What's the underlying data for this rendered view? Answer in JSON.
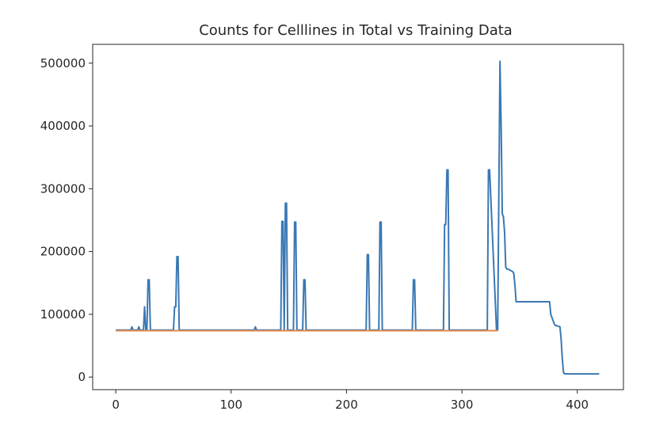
{
  "chart_data": {
    "type": "line",
    "title": "Counts for Celllines in Total vs Training Data",
    "xlabel": "",
    "ylabel": "",
    "xlim": [
      -20,
      440
    ],
    "ylim": [
      -20000,
      530000
    ],
    "xticks": [
      0,
      100,
      200,
      300,
      400
    ],
    "xtick_labels": [
      "0",
      "100",
      "200",
      "300",
      "400"
    ],
    "yticks": [
      0,
      100000,
      200000,
      300000,
      400000,
      500000
    ],
    "ytick_labels": [
      "0",
      "100000",
      "200000",
      "300000",
      "400000",
      "500000"
    ],
    "grid": false,
    "legend": "none",
    "series": [
      {
        "color": "#3a78b4",
        "x": [
          0,
          13,
          14,
          15,
          19,
          20,
          21,
          24,
          25,
          26,
          27,
          28,
          29,
          30,
          31,
          50,
          51,
          52,
          53,
          54,
          55,
          120,
          121,
          122,
          143,
          144,
          145,
          146,
          147,
          148,
          149,
          150,
          154,
          155,
          156,
          157,
          162,
          163,
          164,
          165,
          217,
          218,
          219,
          220,
          228,
          229,
          230,
          231,
          257,
          258,
          259,
          260,
          284,
          285,
          286,
          287,
          288,
          289,
          322,
          323,
          324,
          330,
          331,
          333,
          334,
          335,
          336,
          337,
          338,
          339,
          340,
          344,
          345,
          346,
          347,
          348,
          375,
          376,
          377,
          378,
          380,
          381,
          382,
          385,
          386,
          387,
          388,
          389,
          390,
          400,
          410,
          419
        ],
        "y": [
          75000,
          75000,
          80000,
          75000,
          75000,
          80000,
          75000,
          75000,
          112000,
          75000,
          75000,
          155000,
          155000,
          75000,
          75000,
          75000,
          112000,
          112000,
          192000,
          192000,
          75000,
          75000,
          80000,
          75000,
          75000,
          248000,
          248000,
          75000,
          277000,
          277000,
          75000,
          75000,
          75000,
          247000,
          247000,
          75000,
          75000,
          155000,
          155000,
          75000,
          75000,
          195000,
          195000,
          75000,
          75000,
          247000,
          247000,
          75000,
          75000,
          155000,
          155000,
          75000,
          75000,
          243000,
          243000,
          330000,
          330000,
          75000,
          75000,
          330000,
          330000,
          75000,
          75000,
          503000,
          400000,
          260000,
          255000,
          230000,
          175000,
          172000,
          172000,
          168000,
          165000,
          145000,
          120000,
          120000,
          120000,
          120000,
          100000,
          95000,
          85000,
          82000,
          82000,
          80000,
          60000,
          30000,
          8000,
          5000,
          5000,
          5000,
          5000,
          5000
        ]
      },
      {
        "color": "#e0874a",
        "x": [
          0,
          331
        ],
        "y": [
          74000,
          74000
        ]
      }
    ]
  }
}
